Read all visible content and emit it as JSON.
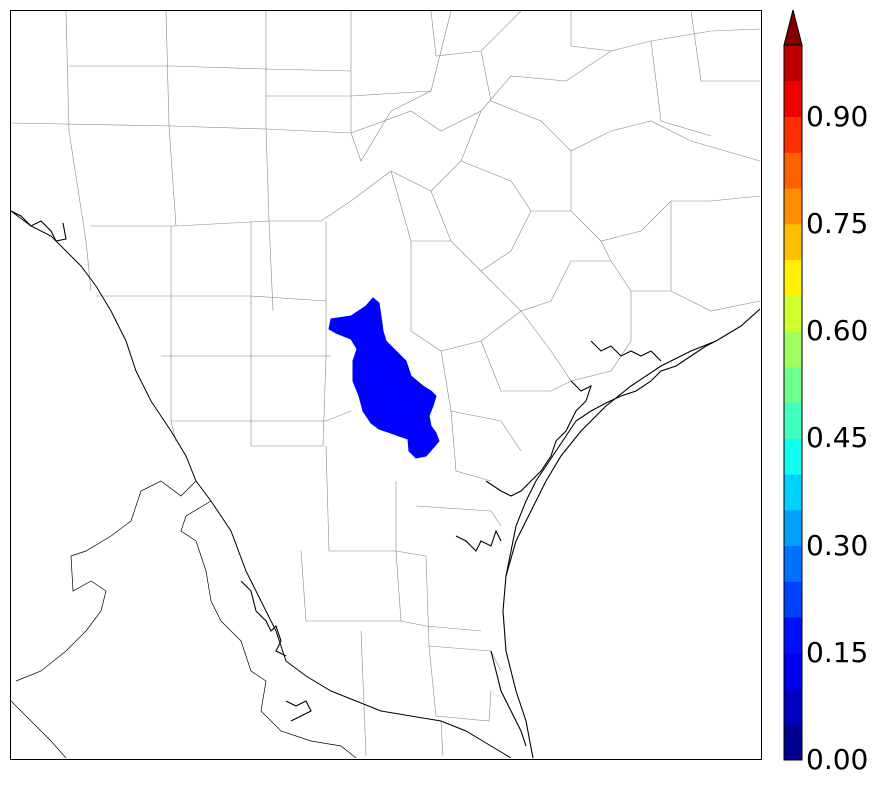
{
  "colorbar": {
    "ticks": [
      {
        "value": 0.0,
        "label": "0.00"
      },
      {
        "value": 0.15,
        "label": "0.15"
      },
      {
        "value": 0.3,
        "label": "0.30"
      },
      {
        "value": 0.45,
        "label": "0.45"
      },
      {
        "value": 0.6,
        "label": "0.60"
      },
      {
        "value": 0.75,
        "label": "0.75"
      },
      {
        "value": 0.9,
        "label": "0.90"
      }
    ],
    "range": [
      0.0,
      1.0
    ],
    "extend": "max",
    "bins": 20,
    "colors": [
      "#00008f",
      "#0000bf",
      "#0000ef",
      "#0010ff",
      "#0040ff",
      "#0070ff",
      "#00a0ff",
      "#00d0ff",
      "#10ffef",
      "#40ffbf",
      "#70ff8f",
      "#a0ff60",
      "#d0ff30",
      "#ffef00",
      "#ffbf00",
      "#ff8f00",
      "#ff6000",
      "#ff3000",
      "#ef0000",
      "#bf0000"
    ],
    "extend_color": "#800000"
  },
  "map": {
    "region_color": "#0000ff",
    "highlighted_value": 0.15,
    "coastline_color": "#000000",
    "county_line_color": "#888888"
  }
}
